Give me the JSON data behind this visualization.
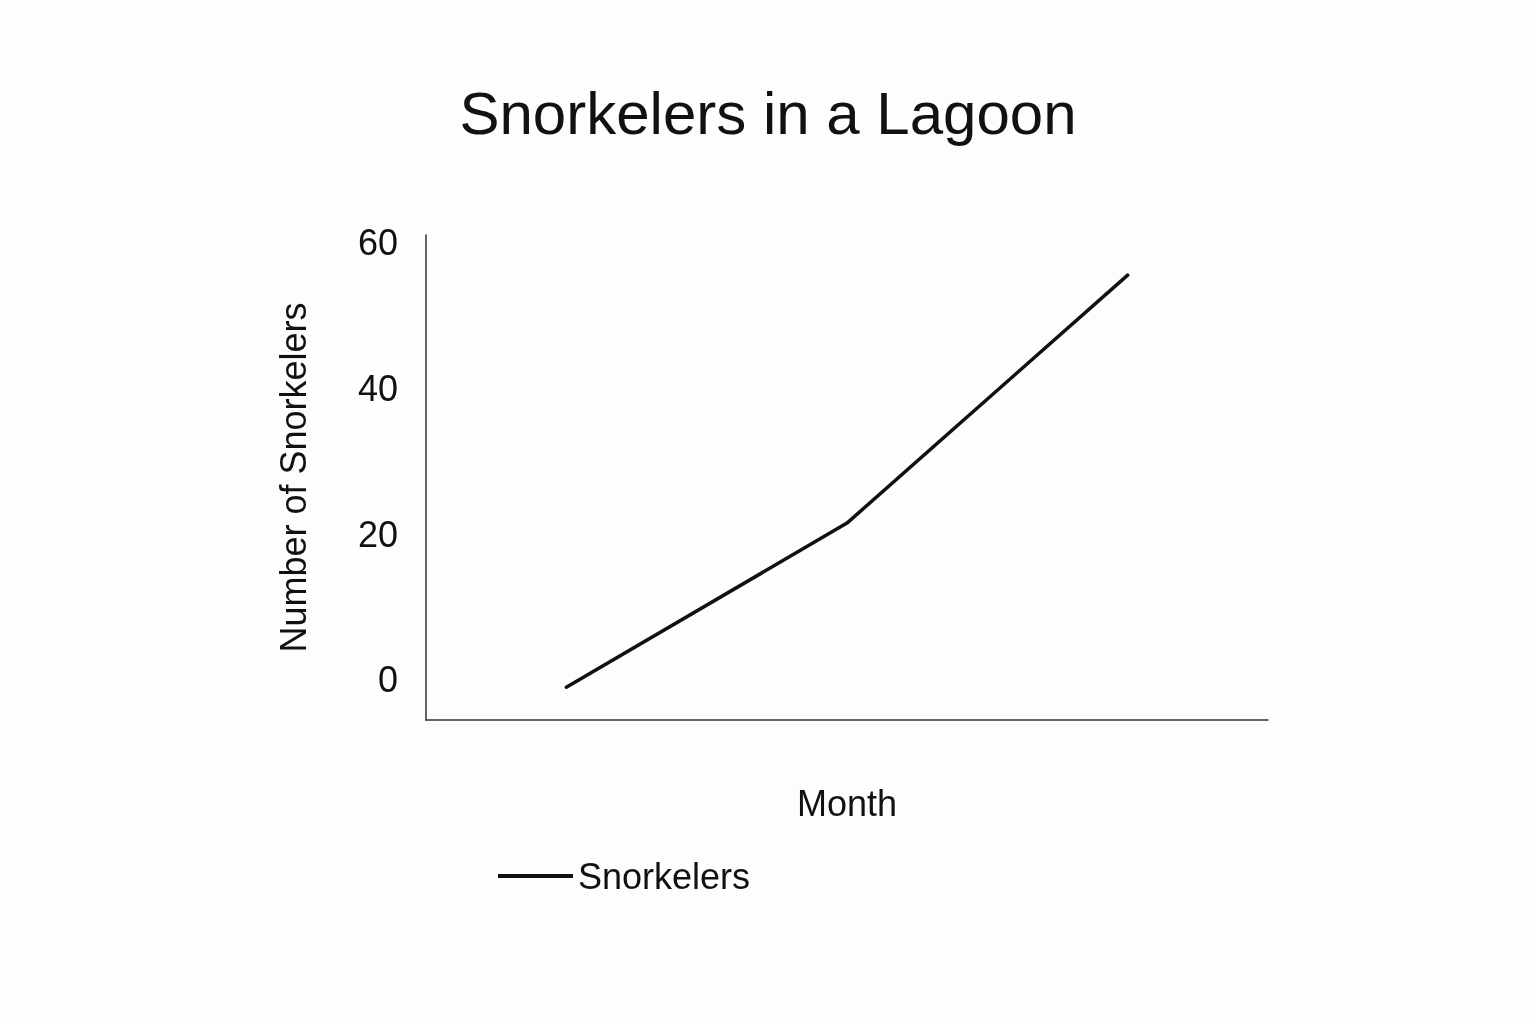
{
  "chart_data": {
    "type": "line",
    "title": "Snorkelers in a Lagoon",
    "xlabel": "Month",
    "ylabel": "Number of Snorkelers",
    "categories": [
      null,
      null,
      null
    ],
    "series": [
      {
        "name": "Snorkelers",
        "color": "#111111",
        "values": [
          -1,
          21.5,
          55.5
        ]
      }
    ],
    "ylim": [
      -5.5,
      61
    ],
    "yticks": [
      0,
      20,
      40,
      60
    ],
    "grid": false,
    "legend": "bottom",
    "marker": "none",
    "line_style": "solid"
  }
}
